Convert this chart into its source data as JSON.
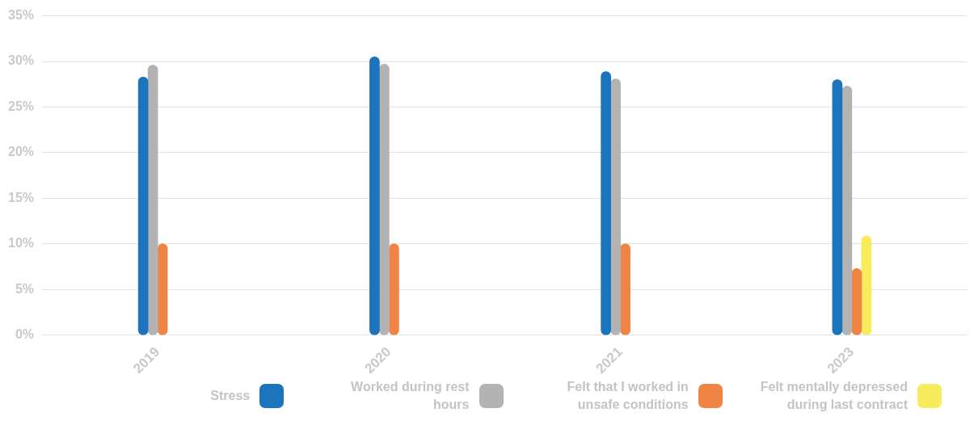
{
  "chart_data": {
    "type": "bar",
    "categories": [
      "2019",
      "2020",
      "2021",
      "2023"
    ],
    "series": [
      {
        "name": "Stress",
        "color": "#1c74bd",
        "values": [
          28.3,
          30.5,
          28.9,
          28.0
        ]
      },
      {
        "name": "Worked during rest hours",
        "color": "#b3b3b3",
        "values": [
          29.6,
          29.7,
          28.1,
          27.3
        ]
      },
      {
        "name": "Felt that I worked in unsafe conditions",
        "color": "#ef8445",
        "values": [
          10,
          10,
          10,
          7.3
        ]
      },
      {
        "name": "Felt mentally depressed during last contract",
        "color": "#f9ec5c",
        "values": [
          null,
          null,
          null,
          10.9
        ]
      }
    ],
    "ylim": [
      0,
      35
    ],
    "yticks": [
      {
        "value": 0,
        "label": "0%"
      },
      {
        "value": 5,
        "label": "5%"
      },
      {
        "value": 10,
        "label": "10%"
      },
      {
        "value": 15,
        "label": "15%"
      },
      {
        "value": 20,
        "label": "20%"
      },
      {
        "value": 25,
        "label": "25%"
      },
      {
        "value": 30,
        "label": "30%"
      },
      {
        "value": 35,
        "label": "35%"
      }
    ],
    "grid": "y",
    "legend": "bottom"
  }
}
